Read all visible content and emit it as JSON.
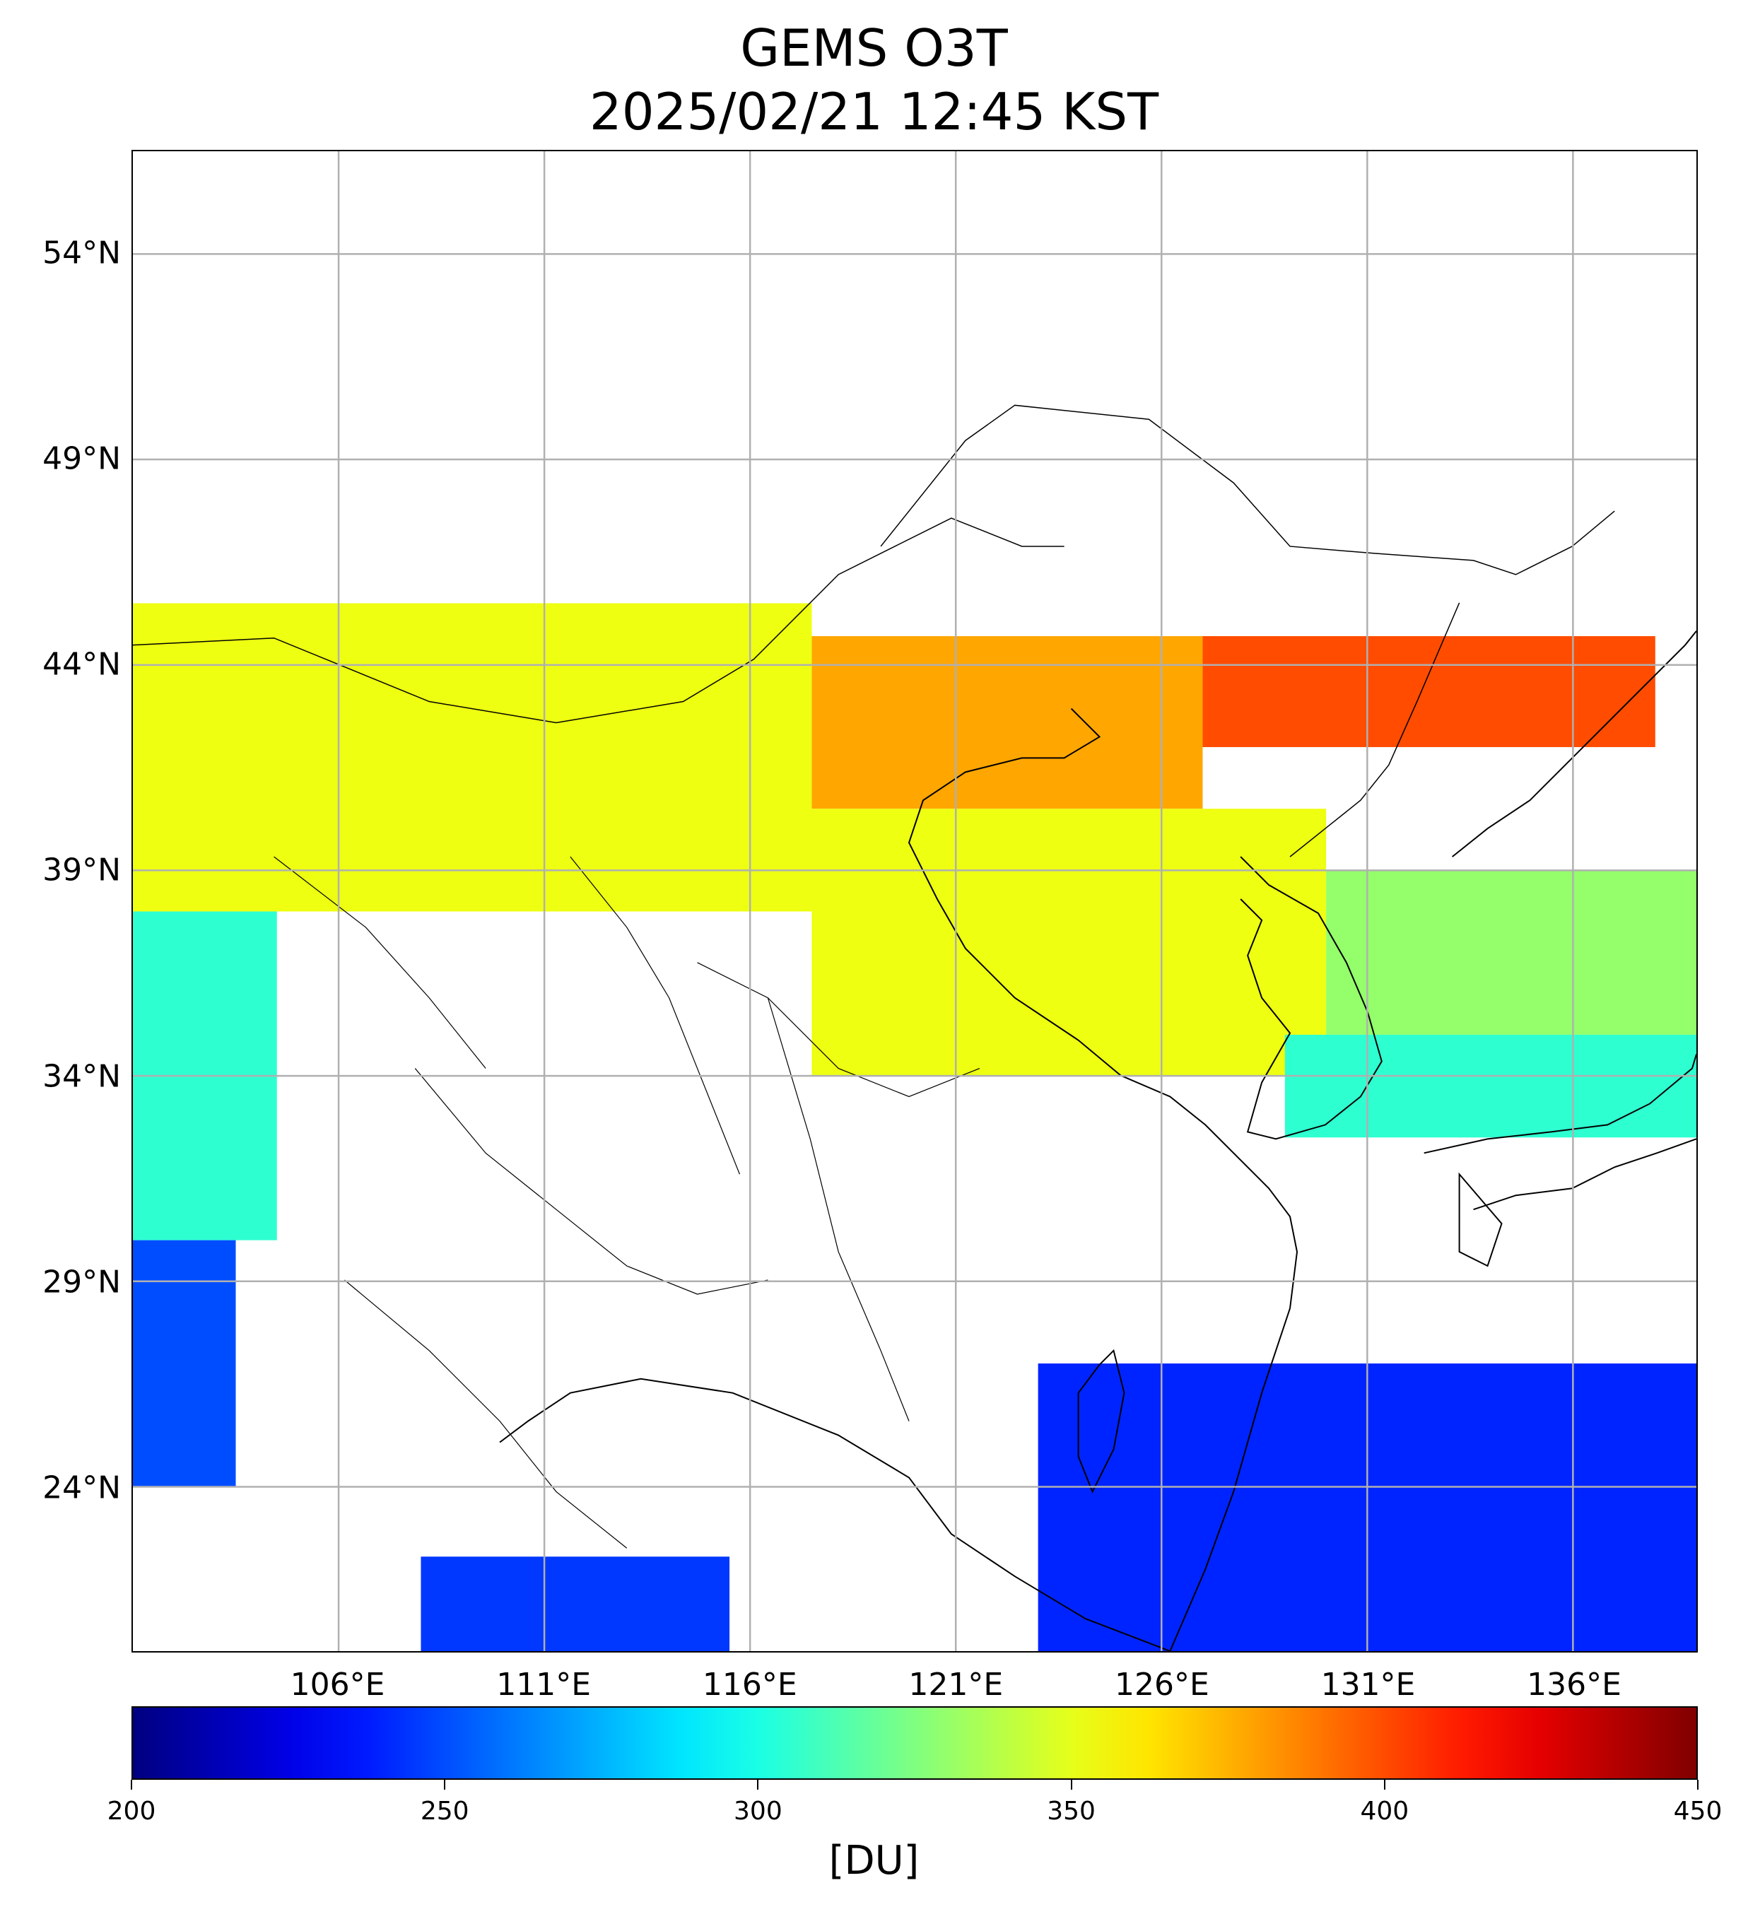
{
  "title": {
    "line1": "GEMS O3T",
    "line2": "2025/02/21 12:45 KST"
  },
  "map": {
    "lon_range": [
      101,
      139
    ],
    "lat_range": [
      20,
      56.5
    ],
    "lat_ticks": [
      "54°N",
      "49°N",
      "44°N",
      "39°N",
      "34°N",
      "29°N",
      "24°N"
    ],
    "lat_values": [
      54,
      49,
      44,
      39,
      34,
      29,
      24
    ],
    "lon_ticks": [
      "106°E",
      "111°E",
      "116°E",
      "121°E",
      "126°E",
      "131°E",
      "136°E"
    ],
    "lon_values": [
      106,
      111,
      116,
      121,
      126,
      131,
      136
    ],
    "grid": true,
    "regions": [
      {
        "name": "mongolia-north-china",
        "lon": [
          101,
          117.5
        ],
        "lat": [
          38,
          45.5
        ],
        "value": 352
      },
      {
        "name": "manchuria",
        "lon": [
          117.5,
          127
        ],
        "lat": [
          40.5,
          44.7
        ],
        "value": 378
      },
      {
        "name": "northeast-far",
        "lon": [
          127,
          138
        ],
        "lat": [
          42,
          44.7
        ],
        "value": 400
      },
      {
        "name": "yellow-sea-korea",
        "lon": [
          117.5,
          130
        ],
        "lat": [
          34,
          40.5
        ],
        "value": 352
      },
      {
        "name": "east-sea",
        "lon": [
          130,
          139
        ],
        "lat": [
          35,
          39
        ],
        "value": 330
      },
      {
        "name": "japan-south",
        "lon": [
          129,
          139
        ],
        "lat": [
          32.5,
          35
        ],
        "value": 305
      },
      {
        "name": "west-china-mid",
        "lon": [
          101,
          104.5
        ],
        "lat": [
          30,
          38
        ],
        "value": 305
      },
      {
        "name": "southwest-china",
        "lon": [
          101,
          103.5
        ],
        "lat": [
          24,
          30
        ],
        "value": 250
      },
      {
        "name": "pacific-south",
        "lon": [
          123,
          139
        ],
        "lat": [
          20,
          27
        ],
        "value": 240
      },
      {
        "name": "south-china-sea",
        "lon": [
          108,
          115.5
        ],
        "lat": [
          20,
          22.3
        ],
        "value": 245
      }
    ]
  },
  "colorbar": {
    "min": 200,
    "max": 450,
    "ticks": [
      "200",
      "250",
      "300",
      "350",
      "400",
      "450"
    ],
    "tick_values": [
      200,
      250,
      300,
      350,
      400,
      450
    ],
    "unit": "[DU]",
    "colormap": "jet"
  }
}
